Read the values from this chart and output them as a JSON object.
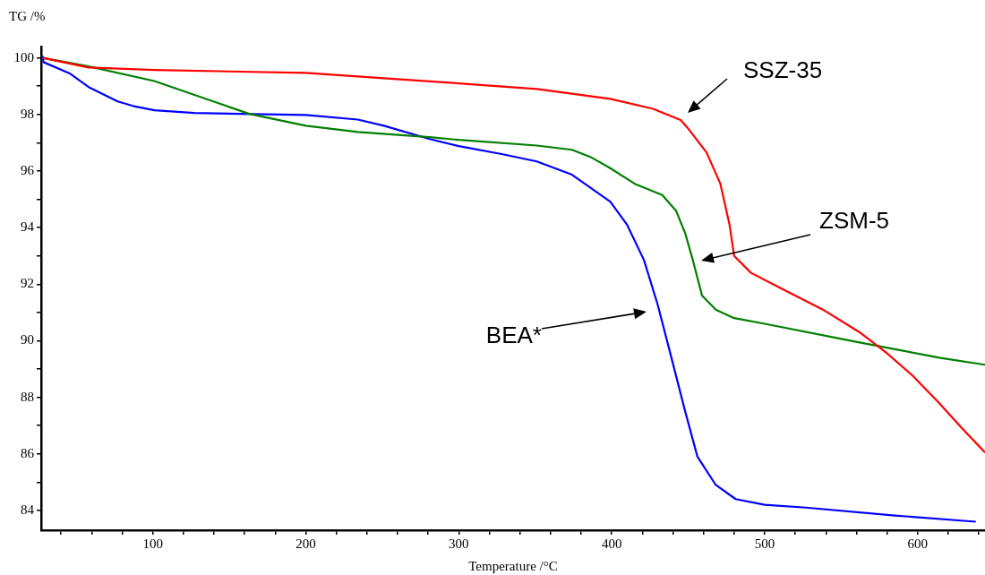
{
  "chart_data": {
    "type": "line",
    "xlabel": "Temperature /°C",
    "ylabel": "TG /%",
    "xlim": [
      27,
      644
    ],
    "ylim": [
      83.3,
      100.4
    ],
    "xticks": [
      {
        "value": 40,
        "label": null
      },
      {
        "value": 60,
        "label": null
      },
      {
        "value": 80,
        "label": null
      },
      100,
      {
        "value": 120,
        "label": null
      },
      {
        "value": 140,
        "label": null
      },
      {
        "value": 160,
        "label": null
      },
      {
        "value": 180,
        "label": null
      },
      200,
      {
        "value": 220,
        "label": null
      },
      {
        "value": 240,
        "label": null
      },
      {
        "value": 260,
        "label": null
      },
      {
        "value": 280,
        "label": null
      },
      300,
      {
        "value": 320,
        "label": null
      },
      {
        "value": 340,
        "label": null
      },
      {
        "value": 360,
        "label": null
      },
      {
        "value": 380,
        "label": null
      },
      400,
      {
        "value": 420,
        "label": null
      },
      {
        "value": 440,
        "label": null
      },
      {
        "value": 460,
        "label": null
      },
      {
        "value": 480,
        "label": null
      },
      500,
      {
        "value": 520,
        "label": null
      },
      {
        "value": 540,
        "label": null
      },
      {
        "value": 560,
        "label": null
      },
      {
        "value": 580,
        "label": null
      },
      600,
      {
        "value": 620,
        "label": null
      },
      {
        "value": 640,
        "label": null
      }
    ],
    "yticks": [
      84,
      {
        "value": 85,
        "label": null
      },
      86,
      {
        "value": 87,
        "label": null
      },
      88,
      {
        "value": 89,
        "label": null
      },
      90,
      {
        "value": 91,
        "label": null
      },
      92,
      {
        "value": 93,
        "label": null
      },
      94,
      {
        "value": 95,
        "label": null
      },
      96,
      {
        "value": 97,
        "label": null
      },
      98,
      {
        "value": 99,
        "label": null
      },
      100
    ],
    "grid": false,
    "legend": false,
    "marker": "none",
    "line_style": "solid",
    "series": [
      {
        "color": "#ff0000",
        "x": [
          28,
          58,
          101,
          200,
          251,
          300,
          351,
          399,
          427,
          445,
          450,
          462,
          471,
          477,
          480,
          491,
          509,
          538,
          562,
          579,
          597,
          614,
          629,
          644
        ],
        "values": [
          100.0,
          99.66,
          99.57,
          99.47,
          99.28,
          99.1,
          98.9,
          98.55,
          98.2,
          97.8,
          97.5,
          96.65,
          95.55,
          94.1,
          93.0,
          92.4,
          91.9,
          91.1,
          90.3,
          89.6,
          88.75,
          87.8,
          86.9,
          86.05
        ]
      },
      {
        "color": "#008000",
        "x": [
          28,
          58,
          101,
          163,
          200,
          234,
          281,
          300,
          351,
          374,
          386,
          399,
          415,
          433,
          442,
          448,
          453,
          459,
          468,
          480,
          500,
          556,
          585,
          614,
          644
        ],
        "values": [
          100.0,
          99.7,
          99.18,
          98.02,
          97.6,
          97.38,
          97.2,
          97.1,
          96.9,
          96.75,
          96.5,
          96.1,
          95.55,
          95.15,
          94.6,
          93.8,
          92.85,
          91.6,
          91.1,
          90.8,
          90.6,
          90.0,
          89.7,
          89.4,
          89.15
        ]
      },
      {
        "color": "#0000ff",
        "x": [
          28,
          28.5,
          46,
          58,
          77,
          87,
          101,
          127,
          200,
          234,
          251,
          281,
          300,
          328,
          351,
          374,
          399,
          410,
          421,
          430,
          439,
          448,
          456,
          468,
          481,
          500,
          527,
          585,
          638
        ],
        "values": [
          100.07,
          99.85,
          99.44,
          98.97,
          98.46,
          98.3,
          98.15,
          98.05,
          97.98,
          97.82,
          97.6,
          97.13,
          96.88,
          96.6,
          96.34,
          95.87,
          94.92,
          94.1,
          92.86,
          91.28,
          89.4,
          87.5,
          85.9,
          84.9,
          84.4,
          84.2,
          84.1,
          83.82,
          83.6
        ]
      }
    ],
    "annotations": [
      "SSZ-35",
      "ZSM-5",
      "BEA*"
    ]
  }
}
